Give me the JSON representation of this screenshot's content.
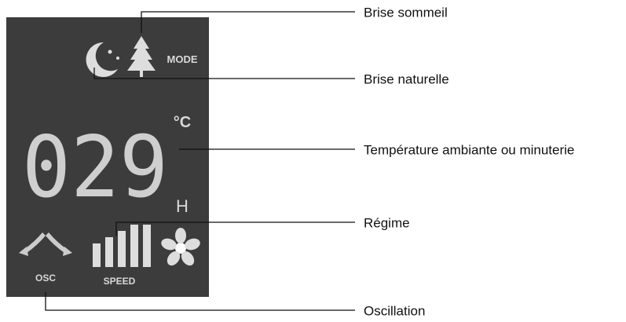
{
  "callouts": [
    "Brise sommeil",
    "Brise naturelle",
    "Température ambiante ou minuterie",
    "Régime",
    "Oscillation"
  ],
  "display": {
    "mode": "MODE",
    "digits": "029",
    "celsius": "°C",
    "hours": "H",
    "osc": "OSC",
    "speed": "SPEED"
  }
}
